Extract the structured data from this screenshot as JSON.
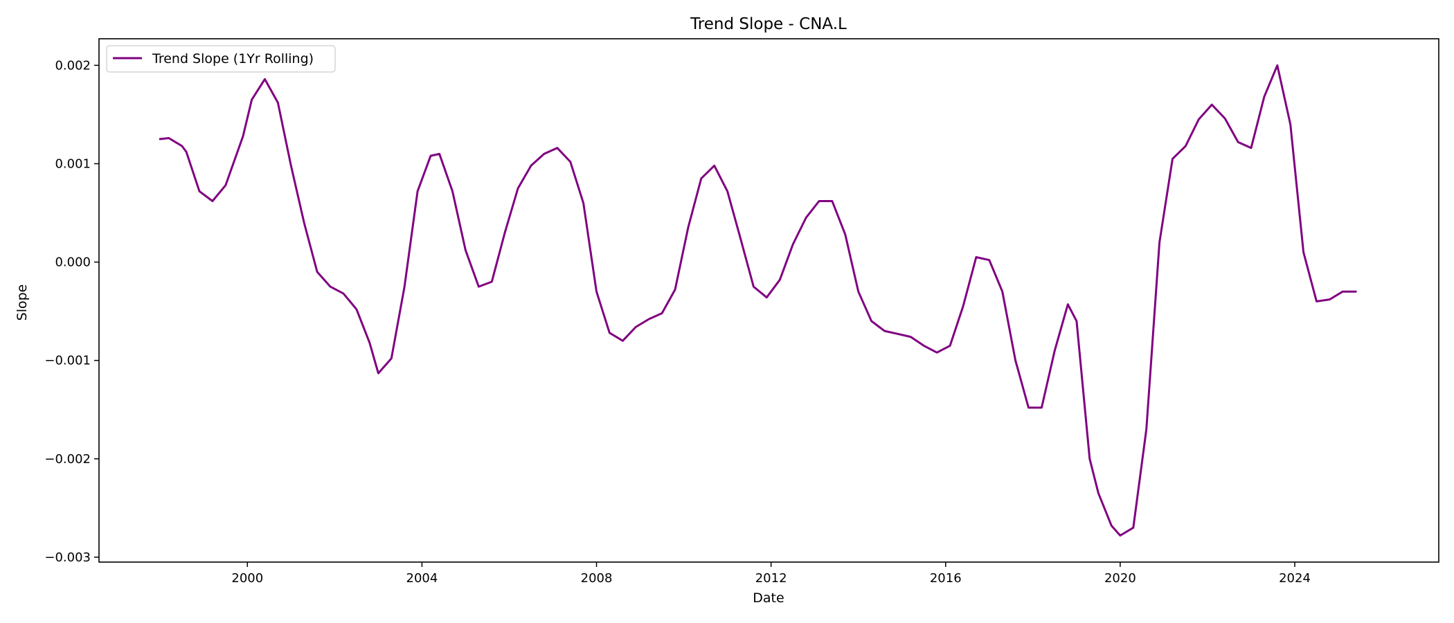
{
  "chart_data": {
    "type": "line",
    "title": "Trend Slope - CNA.L",
    "xlabel": "Date",
    "ylabel": "Slope",
    "xlim": [
      1996.6,
      2027.3
    ],
    "ylim": [
      -0.00305,
      0.00227
    ],
    "x_ticks": [
      2000,
      2004,
      2008,
      2012,
      2016,
      2020,
      2024
    ],
    "x_tick_labels": [
      "2000",
      "2004",
      "2008",
      "2012",
      "2016",
      "2020",
      "2024"
    ],
    "y_ticks": [
      0.002,
      0.001,
      0.0,
      -0.001,
      -0.002,
      -0.003
    ],
    "y_tick_labels": [
      "0.002",
      "0.001",
      "0.000",
      "−0.001",
      "−0.002",
      "−0.003"
    ],
    "grid": false,
    "legend": {
      "position": "top-left",
      "entries": [
        "Trend Slope (1Yr Rolling)"
      ]
    },
    "colors": {
      "series": "#800080",
      "axes": "#000000"
    },
    "series": [
      {
        "name": "Trend Slope (1Yr Rolling)",
        "x": [
          1998.0,
          1998.2,
          1998.5,
          1998.6,
          1998.9,
          1999.2,
          1999.5,
          1999.9,
          2000.1,
          2000.4,
          2000.7,
          2001.0,
          2001.3,
          2001.6,
          2001.9,
          2002.2,
          2002.5,
          2002.8,
          2003.0,
          2003.3,
          2003.6,
          2003.9,
          2004.2,
          2004.4,
          2004.7,
          2005.0,
          2005.3,
          2005.6,
          2005.9,
          2006.2,
          2006.5,
          2006.8,
          2007.1,
          2007.4,
          2007.7,
          2008.0,
          2008.3,
          2008.6,
          2008.9,
          2009.2,
          2009.5,
          2009.8,
          2010.1,
          2010.4,
          2010.7,
          2011.0,
          2011.3,
          2011.6,
          2011.9,
          2012.2,
          2012.5,
          2012.8,
          2013.1,
          2013.4,
          2013.7,
          2014.0,
          2014.3,
          2014.6,
          2014.9,
          2015.2,
          2015.5,
          2015.8,
          2016.1,
          2016.4,
          2016.7,
          2017.0,
          2017.3,
          2017.6,
          2017.9,
          2018.2,
          2018.5,
          2018.8,
          2019.0,
          2019.3,
          2019.5,
          2019.8,
          2020.0,
          2020.3,
          2020.6,
          2020.9,
          2021.2,
          2021.5,
          2021.8,
          2022.1,
          2022.4,
          2022.7,
          2023.0,
          2023.3,
          2023.6,
          2023.9,
          2024.2,
          2024.5,
          2024.8,
          2025.1,
          2025.4
        ],
        "y": [
          0.00125,
          0.00126,
          0.00118,
          0.00112,
          0.00072,
          0.00062,
          0.00078,
          0.00128,
          0.00165,
          0.00186,
          0.00162,
          0.00098,
          0.0004,
          -0.0001,
          -0.00025,
          -0.00032,
          -0.00048,
          -0.00082,
          -0.00113,
          -0.00098,
          -0.00025,
          0.00072,
          0.00108,
          0.0011,
          0.00072,
          0.00012,
          -0.00025,
          -0.0002,
          0.0003,
          0.00075,
          0.00098,
          0.0011,
          0.00116,
          0.00102,
          0.0006,
          -0.0003,
          -0.00072,
          -0.0008,
          -0.00066,
          -0.00058,
          -0.00052,
          -0.00028,
          0.00035,
          0.00085,
          0.00098,
          0.00072,
          0.00024,
          -0.00025,
          -0.00036,
          -0.00018,
          0.00018,
          0.00045,
          0.00062,
          0.00062,
          0.00028,
          -0.0003,
          -0.0006,
          -0.0007,
          -0.00073,
          -0.00076,
          -0.00085,
          -0.00092,
          -0.00085,
          -0.00045,
          5e-05,
          2e-05,
          -0.0003,
          -0.001,
          -0.00148,
          -0.00148,
          -0.0009,
          -0.00043,
          -0.0006,
          -0.002,
          -0.00235,
          -0.00268,
          -0.00278,
          -0.0027,
          -0.0017,
          0.0002,
          0.00105,
          0.00118,
          0.00145,
          0.0016,
          0.00146,
          0.00122,
          0.00116,
          0.00168,
          0.002,
          0.0014,
          0.0001,
          -0.0004,
          -0.00038,
          -0.0003,
          -0.0003
        ]
      }
    ]
  }
}
